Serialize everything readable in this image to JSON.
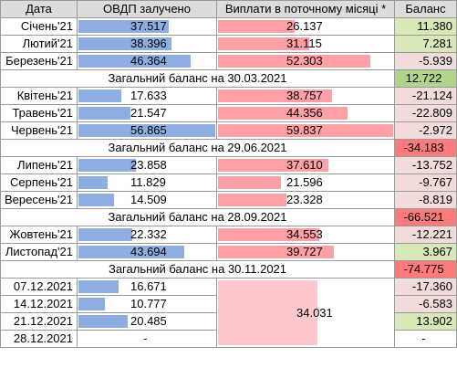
{
  "headers": {
    "date": "Дата",
    "ovdp": "ОВДП залучено",
    "payments": "Виплати в поточному місяці *",
    "balance": "Баланс"
  },
  "rows": [
    {
      "date": "Січень'21",
      "ovdp": "37.517",
      "ovdp_frac": 0.66,
      "pay": "26.137",
      "pay_frac": 0.44,
      "bal": "11.380",
      "sign": "pos"
    },
    {
      "date": "Лютий'21",
      "ovdp": "38.396",
      "ovdp_frac": 0.68,
      "pay": "31.115",
      "pay_frac": 0.52,
      "bal": "7.281",
      "sign": "pos"
    },
    {
      "date": "Березень'21",
      "ovdp": "46.364",
      "ovdp_frac": 0.82,
      "pay": "52.303",
      "pay_frac": 0.87,
      "bal": "-5.939",
      "sign": "neg"
    },
    {
      "summary": "Загальний баланс на 30.03.2021",
      "bal": "12.722",
      "sign": "pos-strong"
    },
    {
      "date": "Квітень'21",
      "ovdp": "17.633",
      "ovdp_frac": 0.31,
      "pay": "38.757",
      "pay_frac": 0.65,
      "bal": "-21.124",
      "sign": "neg"
    },
    {
      "date": "Травень'21",
      "ovdp": "21.547",
      "ovdp_frac": 0.38,
      "pay": "44.356",
      "pay_frac": 0.74,
      "bal": "-22.809",
      "sign": "neg"
    },
    {
      "date": "Червень'21",
      "ovdp": "56.865",
      "ovdp_frac": 1.0,
      "pay": "59.837",
      "pay_frac": 1.0,
      "bal": "-2.972",
      "sign": "neg"
    },
    {
      "summary": "Загальний баланс на 29.06.2021",
      "bal": "-34.183",
      "sign": "neg-strong"
    },
    {
      "date": "Липень'21",
      "ovdp": "23.858",
      "ovdp_frac": 0.42,
      "pay": "37.610",
      "pay_frac": 0.63,
      "bal": "-13.752",
      "sign": "neg"
    },
    {
      "date": "Серпень'21",
      "ovdp": "11.829",
      "ovdp_frac": 0.21,
      "pay": "21.596",
      "pay_frac": 0.36,
      "bal": "-9.767",
      "sign": "neg"
    },
    {
      "date": "Вересень'21",
      "ovdp": "14.509",
      "ovdp_frac": 0.26,
      "pay": "23.328",
      "pay_frac": 0.39,
      "bal": "-8.819",
      "sign": "neg"
    },
    {
      "summary": "Загальний баланс на 28.09.2021",
      "bal": "-66.521",
      "sign": "neg-strong"
    },
    {
      "date": "Жовтень'21",
      "ovdp": "22.332",
      "ovdp_frac": 0.39,
      "pay": "34.553",
      "pay_frac": 0.58,
      "bal": "-12.221",
      "sign": "neg"
    },
    {
      "date": "Листопад'21",
      "ovdp": "43.694",
      "ovdp_frac": 0.77,
      "pay": "39.727",
      "pay_frac": 0.66,
      "bal": "3.967",
      "sign": "pos"
    },
    {
      "summary": "Загальний баланс на 30.11.2021",
      "bal": "-74.775",
      "sign": "neg-strong"
    }
  ],
  "december": {
    "merged_payment": "34.031",
    "merged_payment_frac": 0.57,
    "rows": [
      {
        "date": "07.12.2021",
        "ovdp": "16.671",
        "ovdp_frac": 0.29,
        "bal": "-17.360",
        "sign": "neg"
      },
      {
        "date": "14.12.2021",
        "ovdp": "10.777",
        "ovdp_frac": 0.19,
        "bal": "-6.583",
        "sign": "neg"
      },
      {
        "date": "21.12.2021",
        "ovdp": "20.485",
        "ovdp_frac": 0.36,
        "bal": "13.902",
        "sign": "pos"
      },
      {
        "date": "28.12.2021",
        "ovdp": "-",
        "ovdp_frac": 0,
        "bal": "-",
        "sign": "none"
      }
    ]
  },
  "colors": {
    "ovdp_bar": "#8eaee2",
    "payment_bar": "#ff9fa6",
    "positive": "#d8e8b7",
    "negative": "#f2dcdb",
    "summary_positive": "#b1d48d",
    "summary_negative": "#ff7b7b"
  }
}
